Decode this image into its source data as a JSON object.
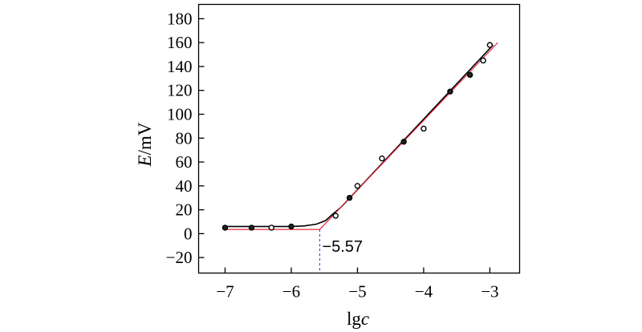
{
  "chart_data": {
    "type": "scatter",
    "xlabel": {
      "main": "lg",
      "italic": "c"
    },
    "ylabel": {
      "italic": "E",
      "main": "/mV"
    },
    "xlim": [
      -7.4,
      -2.55
    ],
    "ylim": [
      -33,
      192
    ],
    "xticks": [
      -7,
      -6,
      -5,
      -4,
      -3
    ],
    "xtick_labels": [
      "−7",
      "−6",
      "−5",
      "−4",
      "−3"
    ],
    "yticks": [
      -20,
      0,
      20,
      40,
      60,
      80,
      100,
      120,
      140,
      160,
      180
    ],
    "ytick_labels": [
      "−20",
      "0",
      "20",
      "40",
      "60",
      "80",
      "100",
      "120",
      "140",
      "160",
      "180"
    ],
    "grid": false,
    "points": [
      {
        "x": -7.0,
        "y": 5,
        "filled": true
      },
      {
        "x": -6.6,
        "y": 5,
        "filled": true
      },
      {
        "x": -6.3,
        "y": 5,
        "filled": false
      },
      {
        "x": -6.0,
        "y": 6,
        "filled": true
      },
      {
        "x": -5.33,
        "y": 15,
        "filled": false
      },
      {
        "x": -5.12,
        "y": 30,
        "filled": true
      },
      {
        "x": -5.0,
        "y": 40,
        "filled": false
      },
      {
        "x": -4.63,
        "y": 63,
        "filled": false
      },
      {
        "x": -4.3,
        "y": 77,
        "filled": true
      },
      {
        "x": -4.0,
        "y": 88,
        "filled": false
      },
      {
        "x": -3.6,
        "y": 119,
        "filled": true
      },
      {
        "x": -3.3,
        "y": 133,
        "filled": true
      },
      {
        "x": -3.1,
        "y": 145,
        "filled": false
      },
      {
        "x": -3.0,
        "y": 158,
        "filled": false
      }
    ],
    "fit_curve": [
      [
        -7.0,
        6
      ],
      [
        -6.0,
        6
      ],
      [
        -5.8,
        6.5
      ],
      [
        -5.62,
        8
      ],
      [
        -5.48,
        11
      ],
      [
        -5.38,
        16
      ],
      [
        -5.25,
        22
      ],
      [
        -2.95,
        158
      ]
    ],
    "tangent_lines": [
      [
        [
          -7.0,
          3.5
        ],
        [
          -5.57,
          3.5
        ]
      ],
      [
        [
          -5.57,
          3.5
        ],
        [
          -2.88,
          160
        ]
      ]
    ],
    "intersection": {
      "x": -5.57,
      "y": 3.5,
      "label": "−5.57"
    },
    "colors": {
      "fit": "#000000",
      "tangent": "#e8283c",
      "dropline": "#4a4ad8"
    }
  }
}
